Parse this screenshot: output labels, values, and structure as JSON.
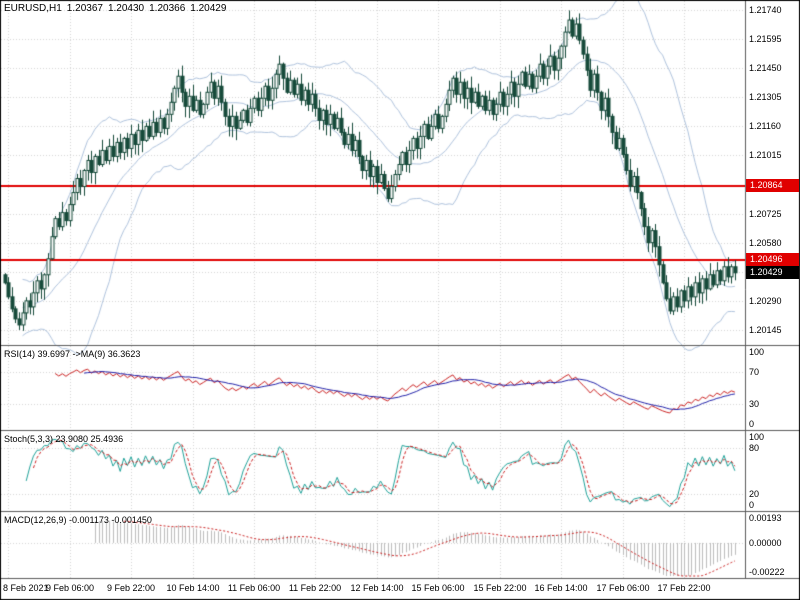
{
  "colors": {
    "background": "#ffffff",
    "frame": "#000000",
    "grid": "#d6d6d6",
    "separator": "#5a5a5a",
    "candle_outline": "#164a3a",
    "candle_bull_fill": "#ffffff",
    "candle_bear_fill": "#164a3a",
    "bollinger": "#b0c4de",
    "hline_red": "#e00000",
    "current_tag_bg": "#000000",
    "tag_text": "#ffffff",
    "rsi_line": "#cc2222",
    "rsi_ma_line": "#2222aa",
    "stoch_main": "#20a39a",
    "stoch_signal": "#cc2222",
    "macd_histogram": "#bdbdbd",
    "macd_signal": "#cc2222",
    "axis_text": "#000000"
  },
  "header": {
    "symbol_timeframe": "EURUSD,H1",
    "open": "1.20367",
    "high": "1.20430",
    "low": "1.20366",
    "close": "1.20429"
  },
  "panels": {
    "rsi_label": "RSI(14) 39.6997 ->MA(9) 36.3623",
    "stoch_label": "Stoch(5,3,3) 23.9080 25.4936",
    "macd_label": "MACD(12,26,9) -0.001173 -0.001450"
  },
  "tags": {
    "hline1": "1.20864",
    "hline2": "1.20496",
    "current": "1.20429"
  },
  "chart_data": [
    {
      "type": "candlestick",
      "symbol": "EURUSD",
      "timeframe": "H1",
      "title": "EURUSD,H1",
      "last_bar_ohlc": [
        1.20367,
        1.2043,
        1.20366,
        1.20429
      ],
      "ylim": [
        1.2007,
        1.21785
      ],
      "y_ticks": [
        1.2174,
        1.21595,
        1.2145,
        1.21305,
        1.2116,
        1.21015,
        1.2087,
        1.20725,
        1.2058,
        1.20435,
        1.2029,
        1.20145
      ],
      "x_ticks": [
        {
          "label": "8 Feb 2021",
          "index": 1
        },
        {
          "label": "9 Feb 06:00",
          "index": 18
        },
        {
          "label": "9 Feb 22:00",
          "index": 35
        },
        {
          "label": "10 Feb 14:00",
          "index": 52
        },
        {
          "label": "11 Feb 06:00",
          "index": 69
        },
        {
          "label": "11 Feb 22:00",
          "index": 86
        },
        {
          "label": "12 Feb 14:00",
          "index": 103
        },
        {
          "label": "15 Feb 06:00",
          "index": 120
        },
        {
          "label": "15 Feb 22:00",
          "index": 137
        },
        {
          "label": "16 Feb 14:00",
          "index": 154
        },
        {
          "label": "17 Feb 06:00",
          "index": 171
        },
        {
          "label": "17 Feb 22:00",
          "index": 188
        }
      ],
      "overlays": [
        {
          "name": "Bollinger Bands",
          "period": 20,
          "deviations": 2
        }
      ],
      "hlines": [
        {
          "value": 1.20864,
          "label": "1.20864"
        },
        {
          "value": 1.20496,
          "label": "1.20496"
        }
      ],
      "current_price": {
        "value": 1.20429,
        "label": "1.20429"
      },
      "close_series": [
        1.2038,
        1.2031,
        1.2025,
        1.202,
        1.2017,
        1.2023,
        1.2029,
        1.2026,
        1.2033,
        1.2039,
        1.2035,
        1.2042,
        1.205,
        1.2061,
        1.207,
        1.2066,
        1.2073,
        1.2069,
        1.2077,
        1.2083,
        1.209,
        1.2086,
        1.2094,
        1.2099,
        1.2093,
        1.2101,
        1.2097,
        1.2104,
        1.2099,
        1.2106,
        1.2101,
        1.2108,
        1.2103,
        1.211,
        1.2105,
        1.2112,
        1.2107,
        1.2114,
        1.2109,
        1.2116,
        1.2111,
        1.2118,
        1.2113,
        1.212,
        1.2115,
        1.2122,
        1.2128,
        1.2135,
        1.2141,
        1.2133,
        1.2126,
        1.2131,
        1.2124,
        1.2129,
        1.2122,
        1.2127,
        1.2133,
        1.2138,
        1.213,
        1.2136,
        1.2128,
        1.2121,
        1.2116,
        1.2121,
        1.2115,
        1.2119,
        1.2124,
        1.2118,
        1.2125,
        1.213,
        1.2124,
        1.213,
        1.2136,
        1.2129,
        1.2135,
        1.2142,
        1.2147,
        1.214,
        1.2133,
        1.2139,
        1.2132,
        1.2137,
        1.2129,
        1.2134,
        1.2127,
        1.2132,
        1.2125,
        1.2119,
        1.2124,
        1.2117,
        1.2122,
        1.2115,
        1.212,
        1.2113,
        1.2107,
        1.2112,
        1.2104,
        1.2109,
        1.2101,
        1.2094,
        1.2099,
        1.2091,
        1.2096,
        1.2088,
        1.2092,
        1.2085,
        1.208,
        1.2086,
        1.2092,
        1.2097,
        1.2103,
        1.2097,
        1.2104,
        1.211,
        1.2105,
        1.2111,
        1.2117,
        1.211,
        1.2116,
        1.2122,
        1.2115,
        1.2121,
        1.2127,
        1.2134,
        1.214,
        1.2132,
        1.2138,
        1.213,
        1.2135,
        1.2128,
        1.2133,
        1.2126,
        1.2131,
        1.2124,
        1.2129,
        1.2122,
        1.2127,
        1.2133,
        1.2126,
        1.2132,
        1.2138,
        1.2131,
        1.2137,
        1.2143,
        1.2136,
        1.2142,
        1.2135,
        1.2141,
        1.2147,
        1.214,
        1.2146,
        1.2151,
        1.2144,
        1.215,
        1.2156,
        1.2163,
        1.2169,
        1.2161,
        1.2167,
        1.2159,
        1.2152,
        1.2144,
        1.2134,
        1.2142,
        1.2133,
        1.2124,
        1.213,
        1.2121,
        1.2113,
        1.2105,
        1.211,
        1.2102,
        1.2094,
        1.2086,
        1.2091,
        1.2083,
        1.2075,
        1.2066,
        1.2058,
        1.2064,
        1.2056,
        1.2047,
        1.2038,
        1.203,
        1.2024,
        1.2031,
        1.2026,
        1.2034,
        1.2029,
        1.2036,
        1.2031,
        1.2038,
        1.2033,
        1.204,
        1.2035,
        1.2042,
        1.2037,
        1.2044,
        1.2039,
        1.2046,
        1.2041,
        1.2046,
        1.2043
      ]
    },
    {
      "type": "line",
      "name": "RSI",
      "label": "RSI(14) 39.6997 ->MA(9) 36.3623",
      "params": {
        "period": 14,
        "ma_period": 9
      },
      "current_values": {
        "rsi": 39.6997,
        "ma": 36.3623
      },
      "ylim": [
        0,
        100
      ],
      "levels": [
        70,
        30
      ],
      "y_ticks": [
        {
          "label": "100",
          "value": 100
        },
        {
          "label": "70",
          "value": 70
        },
        {
          "label": "30",
          "value": 30
        },
        {
          "label": "0",
          "value": 0
        }
      ],
      "derived_from": "close_series"
    },
    {
      "type": "line",
      "name": "Stochastic",
      "label": "Stoch(5,3,3) 23.9080 25.4936",
      "params": {
        "k_period": 5,
        "d_period": 3,
        "slowing": 3
      },
      "current_values": {
        "main": 23.908,
        "signal": 25.4936
      },
      "ylim": [
        0,
        100
      ],
      "levels": [
        80,
        20
      ],
      "y_ticks": [
        {
          "label": "100",
          "value": 100
        },
        {
          "label": "80",
          "value": 80
        },
        {
          "label": "20",
          "value": 20
        },
        {
          "label": "0",
          "value": 0
        }
      ],
      "derived_from": "close_series"
    },
    {
      "type": "bar",
      "name": "MACD",
      "label": "MACD(12,26,9) -0.001173 -0.001450",
      "params": {
        "fast_ema": 12,
        "slow_ema": 26,
        "signal_sma": 9
      },
      "current_values": {
        "macd": -0.001173,
        "signal": -0.00145
      },
      "ylim": [
        -0.0024,
        0.0021
      ],
      "y_ticks": [
        {
          "label": "0.00193",
          "value": 0.00193
        },
        {
          "label": "0.00000",
          "value": 0.0
        },
        {
          "label": "-0.00222",
          "value": -0.00222
        }
      ],
      "derived_from": "close_series"
    }
  ]
}
